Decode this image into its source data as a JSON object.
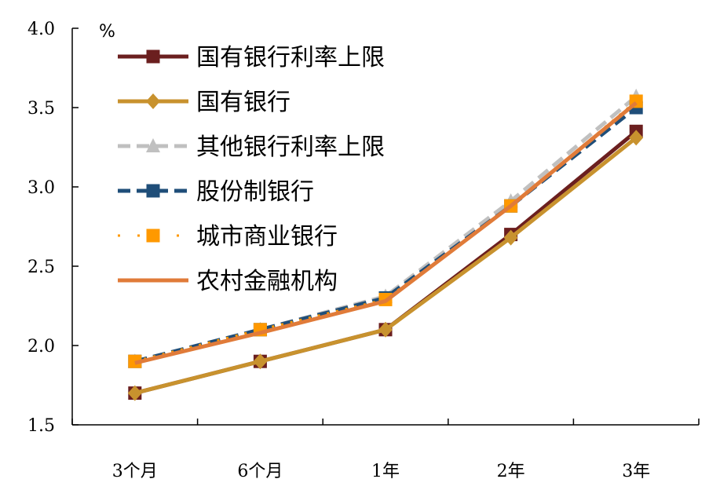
{
  "chart_data": {
    "type": "line",
    "title": "",
    "xlabel": "",
    "ylabel": "",
    "unit": "%",
    "categories": [
      "3个月",
      "6个月",
      "1年",
      "2年",
      "3年"
    ],
    "ylim": [
      1.5,
      4.0
    ],
    "yticks": [
      "4.0",
      "3.5",
      "3.0",
      "2.5",
      "2.0",
      "1.5"
    ],
    "grid": false,
    "legend_position": "top-left",
    "series": [
      {
        "name": "国有银行利率上限",
        "values": [
          1.7,
          1.9,
          2.1,
          2.7,
          3.35
        ],
        "color": "#6b1f1f",
        "marker": "square",
        "dash": "solid"
      },
      {
        "name": "国有银行",
        "values": [
          1.7,
          1.9,
          2.1,
          2.68,
          3.31
        ],
        "color": "#c8922e",
        "marker": "diamond",
        "dash": "solid"
      },
      {
        "name": "其他银行利率上限",
        "values": [
          1.9,
          2.1,
          2.31,
          2.91,
          3.57
        ],
        "color": "#c0c0c0",
        "marker": "triangle",
        "dash": "dashed"
      },
      {
        "name": "股份制银行",
        "values": [
          1.9,
          2.1,
          2.3,
          2.88,
          3.5
        ],
        "color": "#1f4e79",
        "marker": "square",
        "dash": "dashed"
      },
      {
        "name": "城市商业银行",
        "values": [
          1.9,
          2.1,
          2.29,
          2.88,
          3.54
        ],
        "color": "#ff9900",
        "marker": "square",
        "dash": "dotted"
      },
      {
        "name": "农村金融机构",
        "values": [
          1.89,
          2.08,
          2.28,
          2.88,
          3.53
        ],
        "color": "#e07b39",
        "marker": "none",
        "dash": "solid"
      }
    ]
  }
}
